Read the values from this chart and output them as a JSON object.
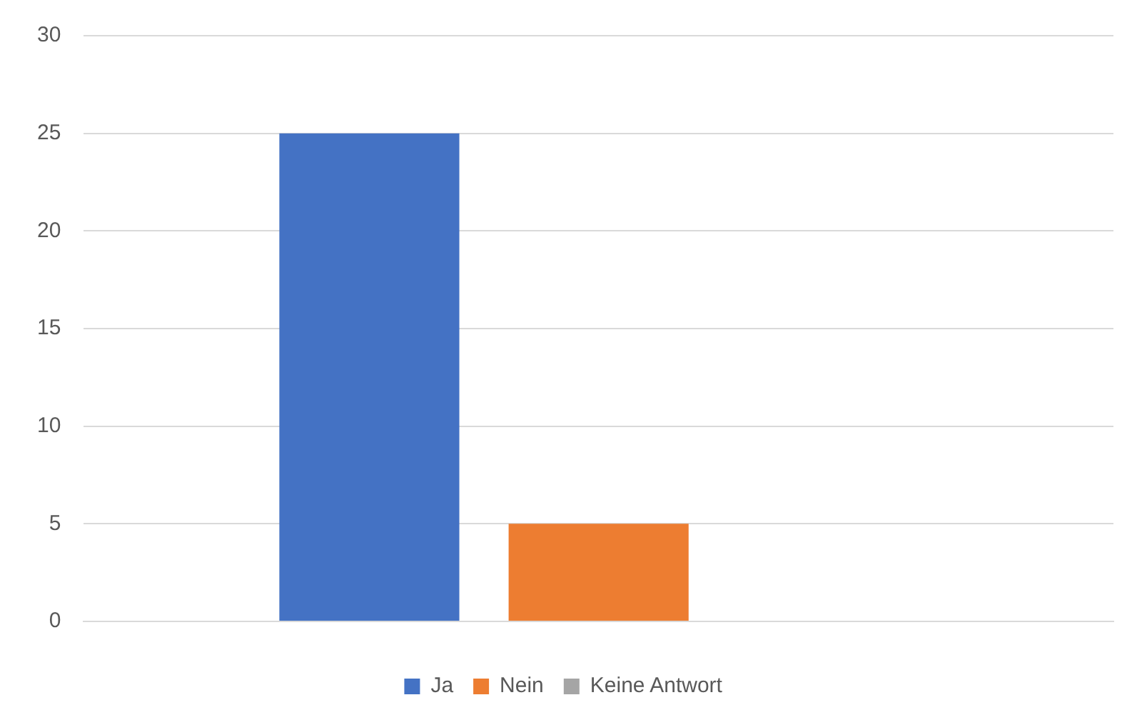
{
  "chart_data": {
    "type": "bar",
    "categories": [
      null
    ],
    "series": [
      {
        "name": "Ja",
        "color": "#4472c4",
        "values": [
          25
        ]
      },
      {
        "name": "Nein",
        "color": "#ed7d31",
        "values": [
          5
        ]
      },
      {
        "name": "Keine Antwort",
        "color": "#a5a5a5",
        "values": [
          0
        ]
      }
    ],
    "ylim": [
      0,
      30
    ],
    "yticks": [
      0,
      5,
      10,
      15,
      20,
      25,
      30
    ],
    "grid": "y",
    "legend": "bottom"
  }
}
